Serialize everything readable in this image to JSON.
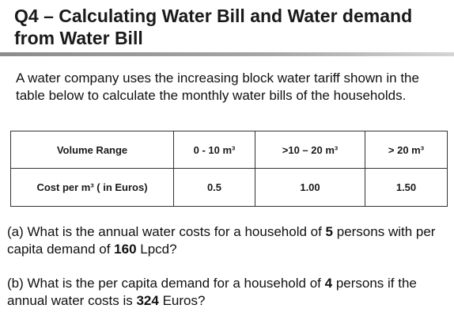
{
  "title": "Q4 – Calculating Water Bill and Water demand from Water Bill",
  "intro": "A water company uses the increasing block water tariff shown in the table below to calculate the monthly water bills of the households.",
  "table": {
    "header": [
      "Volume Range",
      "0  - 10 m³",
      ">10 – 20 m³",
      "> 20 m³"
    ],
    "row_label": "Cost per m³ ( in Euros)",
    "row_values": [
      "0.5",
      "1.00",
      "1.50"
    ]
  },
  "question_a": {
    "t1": "(a) What is the annual water costs for a household of ",
    "persons": "5",
    "t2": " persons with per capita demand of ",
    "demand": "160",
    "t3": " Lpcd?"
  },
  "question_b": {
    "t1": "(b) What is the per capita demand for a household of ",
    "persons": "4",
    "t2": " persons if the annual water costs is ",
    "cost": "324",
    "t3": " Euros?"
  }
}
